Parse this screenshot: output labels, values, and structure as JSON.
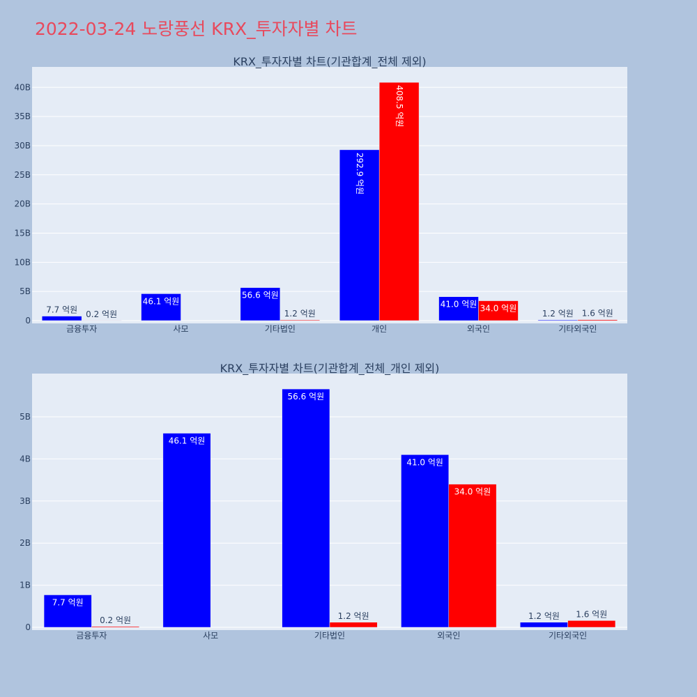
{
  "page_title": "2022-03-24 노랑풍선 KRX_투자자별 차트",
  "colors": {
    "background": "#b0c4de",
    "plot_bg": "#e5ecf6",
    "title": "#e8495c",
    "buy": "#0000ff",
    "sell": "#ff0000",
    "grid": "#ffffff",
    "text": "#2a3f5f"
  },
  "chart_data": [
    {
      "type": "bar",
      "title": "KRX_투자자별 차트(기관합계_전체 제외)",
      "xlabel": "",
      "ylabel": "",
      "ylim": [
        0,
        43500000000
      ],
      "yticks": [
        0,
        5000000000,
        10000000000,
        15000000000,
        20000000000,
        25000000000,
        30000000000,
        35000000000,
        40000000000
      ],
      "yticklabels": [
        "0",
        "5B",
        "10B",
        "15B",
        "20B",
        "25B",
        "30B",
        "35B",
        "40B"
      ],
      "grid": true,
      "categories": [
        "금융투자",
        "사모",
        "기타법인",
        "개인",
        "외국인",
        "기타외국인"
      ],
      "series": [
        {
          "values": [
            770000000,
            4610000000,
            5660000000,
            29290000000,
            4100000000,
            120000000
          ],
          "labels": [
            "7.7 억원",
            "46.1 억원",
            "56.6 억원",
            "292.9 억원",
            "41.0 억원",
            "1.2 억원"
          ]
        },
        {
          "values": [
            20000000,
            0,
            120000000,
            40850000000,
            3400000000,
            160000000
          ],
          "labels": [
            "0.2 억원",
            "",
            "1.2 억원",
            "408.5 억원",
            "34.0 억원",
            "1.6 억원"
          ]
        }
      ]
    },
    {
      "type": "bar",
      "title": "KRX_투자자별 차트(기관합계_전체_개인 제외)",
      "xlabel": "",
      "ylabel": "",
      "ylim": [
        0,
        5960000000
      ],
      "yticks": [
        0,
        1000000000,
        2000000000,
        3000000000,
        4000000000,
        5000000000
      ],
      "yticklabels": [
        "0",
        "1B",
        "2B",
        "3B",
        "4B",
        "5B"
      ],
      "grid": true,
      "categories": [
        "금융투자",
        "사모",
        "기타법인",
        "외국인",
        "기타외국인"
      ],
      "series": [
        {
          "values": [
            770000000,
            4610000000,
            5660000000,
            4100000000,
            120000000
          ],
          "labels": [
            "7.7 억원",
            "46.1 억원",
            "56.6 억원",
            "41.0 억원",
            "1.2 억원"
          ]
        },
        {
          "values": [
            20000000,
            0,
            120000000,
            3400000000,
            160000000
          ],
          "labels": [
            "0.2 억원",
            "",
            "1.2 억원",
            "34.0 억원",
            "1.6 억원"
          ]
        }
      ]
    }
  ]
}
